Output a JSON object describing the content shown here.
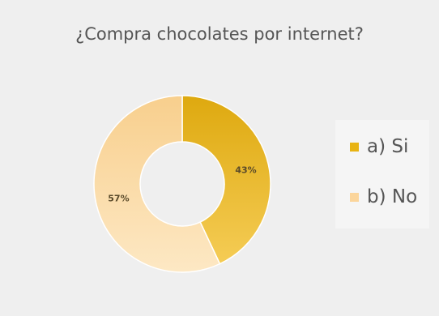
{
  "chart_data": {
    "type": "pie",
    "title": "¿Compra chocolates por internet?",
    "donut": true,
    "categories": [
      "a) Si",
      "b) No"
    ],
    "values": [
      43,
      57
    ],
    "labels": [
      "43%",
      "57%"
    ],
    "colors": [
      "#e8b313",
      "#fbd59b"
    ],
    "legend_position": "right"
  }
}
